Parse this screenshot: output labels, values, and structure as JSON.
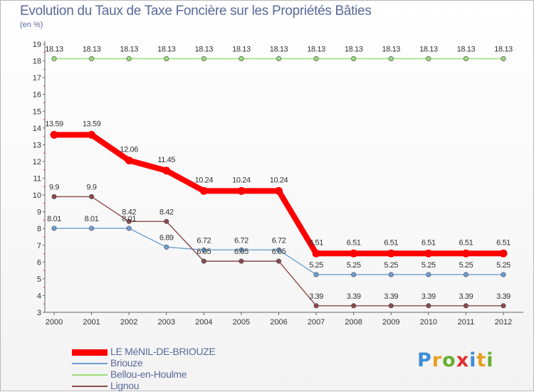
{
  "title": "Evolution du Taux de Taxe Foncière sur les Propriétés Bâties",
  "unit": "(en %)",
  "logo": "Proxiti",
  "chart_data": {
    "type": "line",
    "x": [
      "2000",
      "2001",
      "2002",
      "2003",
      "2004",
      "2005",
      "2006",
      "2007",
      "2008",
      "2009",
      "2010",
      "2011",
      "2012"
    ],
    "ylim": [
      3,
      19
    ],
    "yticks": [
      3,
      4,
      5,
      6,
      7,
      8,
      9,
      10,
      11,
      12,
      13,
      14,
      15,
      16,
      17,
      18,
      19
    ],
    "grid": false,
    "legend_position": "bottom-left",
    "series": [
      {
        "name": "LE MéNIL-DE-BRIOUZE",
        "color": "#ff0000",
        "values": [
          13.59,
          13.59,
          12.06,
          11.45,
          10.24,
          10.24,
          10.24,
          6.51,
          6.51,
          6.51,
          6.51,
          6.51,
          6.51
        ],
        "labels": [
          "13.59",
          "13.59",
          "12.06",
          "11.45",
          "10.24",
          "10.24",
          "10.24",
          "6.51",
          "6.51",
          "6.51",
          "6.51",
          "6.51",
          "6.51"
        ]
      },
      {
        "name": "Briouze",
        "color": "#6fa0d0",
        "values": [
          8.01,
          8.01,
          8.01,
          6.89,
          6.72,
          6.72,
          6.72,
          5.25,
          5.25,
          5.25,
          5.25,
          5.25,
          5.25
        ],
        "labels": [
          "8.01",
          "8.01",
          "8.01",
          "6.89",
          "6.72",
          "6.72",
          "6.72",
          "5.25",
          "5.25",
          "5.25",
          "5.25",
          "5.25",
          "5.25"
        ]
      },
      {
        "name": "Bellou-en-Houlme",
        "color": "#99dd77",
        "values": [
          18.13,
          18.13,
          18.13,
          18.13,
          18.13,
          18.13,
          18.13,
          18.13,
          18.13,
          18.13,
          18.13,
          18.13,
          18.13
        ],
        "labels": [
          "18.13",
          "18.13",
          "18.13",
          "18.13",
          "18.13",
          "18.13",
          "18.13",
          "18.13",
          "18.13",
          "18.13",
          "18.13",
          "18.13",
          "18.13"
        ]
      },
      {
        "name": "Lignou",
        "color": "#8b4a4a",
        "values": [
          9.9,
          9.9,
          8.42,
          8.42,
          6.05,
          6.05,
          6.05,
          3.39,
          3.39,
          3.39,
          3.39,
          3.39,
          3.39
        ],
        "labels": [
          "9.9",
          "9.9",
          "8.42",
          "8.42",
          "6.05",
          "6.05",
          "6.05",
          "3.39",
          "3.39",
          "3.39",
          "3.39",
          "3.39",
          "3.39"
        ]
      }
    ]
  }
}
